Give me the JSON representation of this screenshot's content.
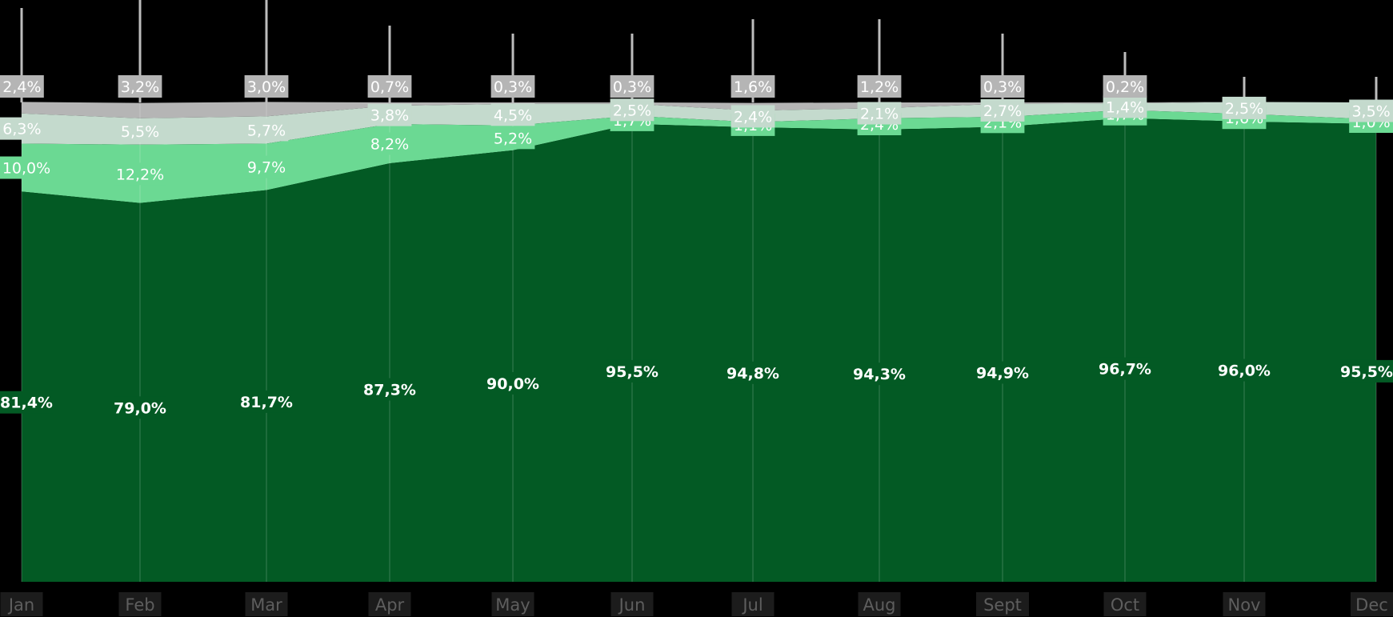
{
  "chart_data": {
    "type": "area",
    "stacked": true,
    "percent": true,
    "categories": [
      "Jan",
      "Feb",
      "Mar",
      "Apr",
      "May",
      "Jun",
      "Jul",
      "Aug",
      "Sept",
      "Oct",
      "Nov",
      "Dec"
    ],
    "series": [
      {
        "values": [
          81.4,
          79.0,
          81.7,
          87.3,
          90.0,
          95.5,
          94.8,
          94.3,
          94.9,
          96.7,
          96.0,
          95.5
        ],
        "color": "#035a24"
      },
      {
        "values": [
          10.0,
          12.2,
          9.7,
          8.2,
          5.2,
          1.7,
          1.1,
          2.4,
          2.1,
          1.7,
          1.6,
          1.0
        ],
        "color": "#6bd993"
      },
      {
        "values": [
          6.3,
          5.5,
          5.7,
          3.8,
          4.5,
          2.5,
          2.4,
          2.1,
          2.7,
          1.4,
          2.5,
          3.5
        ],
        "color": "#c4dacd"
      },
      {
        "values": [
          2.4,
          3.2,
          3.0,
          0.7,
          0.3,
          0.3,
          1.6,
          1.2,
          0.3,
          0.2,
          null,
          null
        ],
        "color": "#b5b5b5"
      }
    ],
    "data_labels": [
      [
        "81,4%",
        "79,0%",
        "81,7%",
        "87,3%",
        "90,0%",
        "95,5%",
        "94,8%",
        "94,3%",
        "94,9%",
        "96,7%",
        "96,0%",
        "95,5%"
      ],
      [
        "10,0%",
        "12,2%",
        "9,7%",
        "8,2%",
        "5,2%",
        "1,7%",
        "1,1%",
        "2,4%",
        "2,1%",
        "1,7%",
        "1,6%",
        "1,0%"
      ],
      [
        "6,3%",
        "5,5%",
        "5,7%",
        "3,8%",
        "4,5%",
        "2,5%",
        "2,4%",
        "2,1%",
        "2,7%",
        "1,4%",
        "2,5%",
        "3,5%"
      ],
      [
        "2,4%",
        "3,2%",
        "3,0%",
        "0,7%",
        "0,3%",
        "0,3%",
        "1,6%",
        "1,2%",
        "0,3%",
        "0,2%",
        "",
        ""
      ]
    ],
    "ylim": [
      0,
      100
    ],
    "grid": true,
    "legend": "none"
  }
}
